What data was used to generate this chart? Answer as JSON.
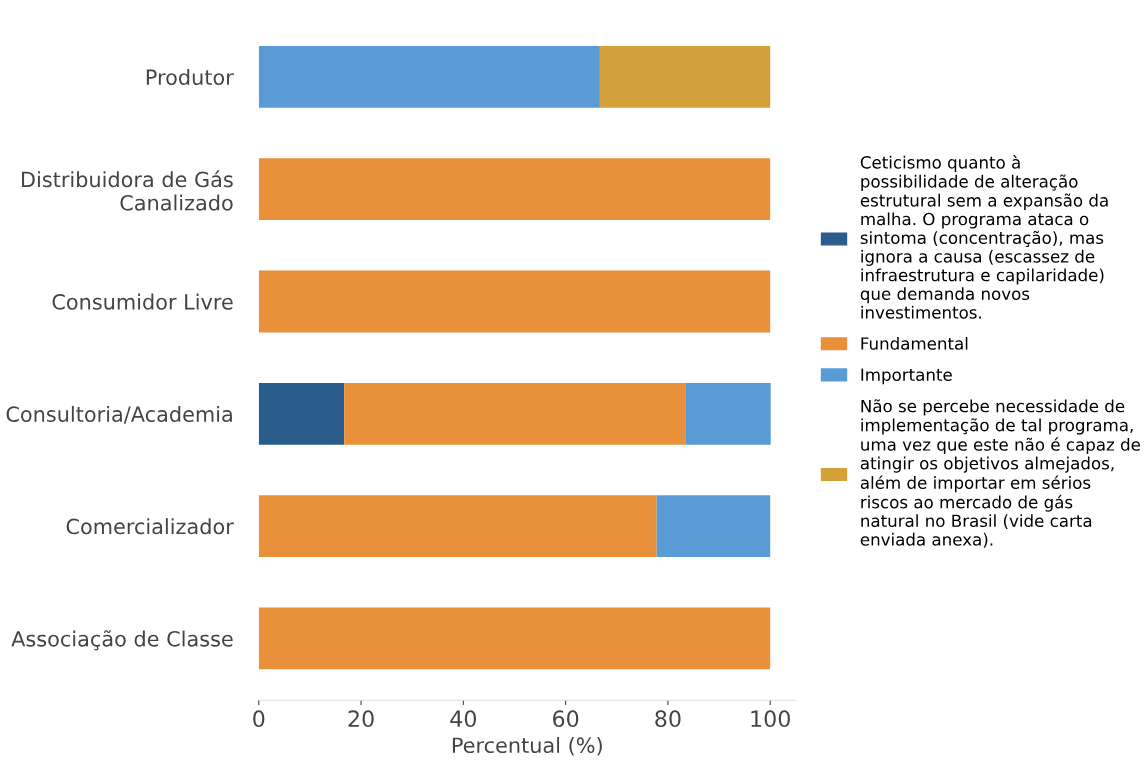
{
  "chart_data": {
    "type": "bar",
    "orientation": "horizontal",
    "stacked": true,
    "xlabel": "Percentual (%)",
    "categories": [
      "Produtor",
      "Distribuidora de Gás Canalizado",
      "Consumidor Livre",
      "Consultoria/Academia",
      "Comercializador",
      "Associação de Classe"
    ],
    "series": [
      {
        "name": "Ceticismo quanto à possibilidade de alteração estrutural sem a expansão da malha. O programa ataca o sintoma (concentração), mas ignora a causa (escassez de infraestrutura e capilaridade) que demanda novos investimentos.",
        "color": "#2a5d8c",
        "values": [
          0,
          0,
          0,
          16.7,
          0,
          0
        ]
      },
      {
        "name": "Fundamental",
        "color": "#e8903a",
        "values": [
          0,
          100,
          100,
          66.7,
          77.8,
          100
        ]
      },
      {
        "name": "Importante",
        "color": "#5b9bd5",
        "values": [
          66.7,
          0,
          0,
          16.7,
          22.2,
          0
        ]
      },
      {
        "name": "Não se percebe necessidade de implementação de tal programa, uma vez que este não é capaz de atingir os objetivos almejados, além de importar em sérios riscos ao mercado de gás natural no Brasil (vide carta enviada anexa).",
        "color": "#d4a03a",
        "values": [
          33.3,
          0,
          0,
          0,
          0,
          0
        ]
      }
    ],
    "xlim": [
      0,
      105
    ],
    "xticks": [
      0,
      20,
      40,
      60,
      80,
      100
    ],
    "grid": false,
    "legend": "right"
  }
}
